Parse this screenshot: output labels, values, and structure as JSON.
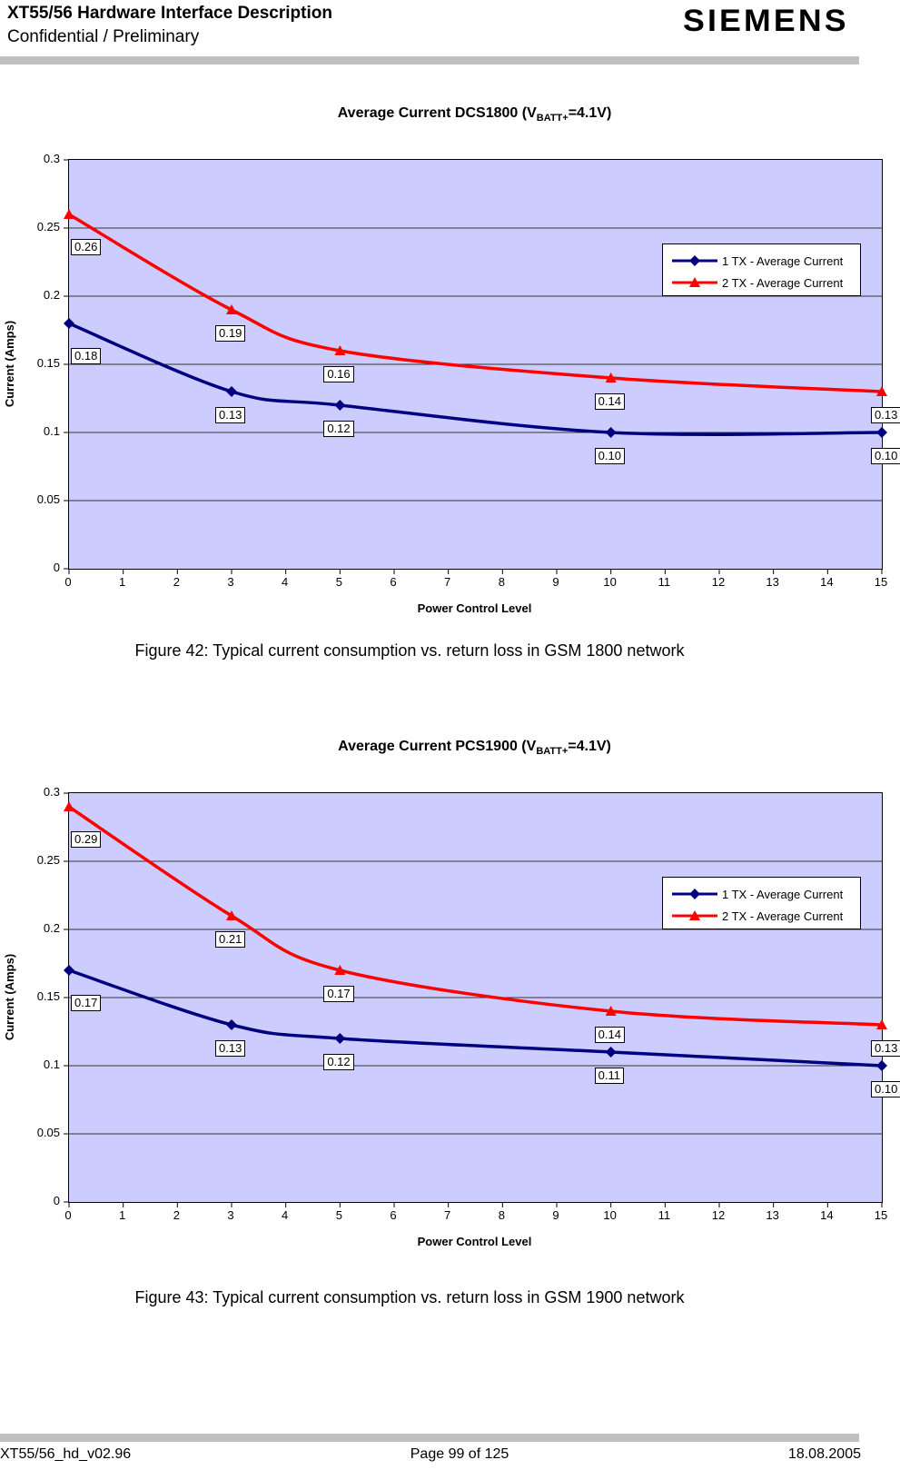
{
  "header": {
    "title": "XT55/56 Hardware Interface Description",
    "subtitle": "Confidential / Preliminary",
    "logo": "SIEMENS"
  },
  "captions": [
    "Figure 42: Typical current consumption vs. return loss in GSM 1800 network",
    "Figure 43: Typical current consumption vs. return loss in GSM 1900 network"
  ],
  "footer": {
    "left": "XT55/56_hd_v02.96",
    "center": "Page 99 of 125",
    "right": "18.08.2005"
  },
  "chart_data": [
    {
      "type": "line",
      "title": "Average Current DCS1800 (VBATT+=4.1V)",
      "title_prefix": "Average Current DCS1800 (V",
      "title_sub": "BATT+",
      "title_suffix": "=4.1V)",
      "xlabel": "Power Control Level",
      "ylabel": "Current (Amps)",
      "xlim": [
        0,
        15
      ],
      "ylim": [
        0,
        0.3
      ],
      "xticks": [
        0,
        1,
        2,
        3,
        4,
        5,
        6,
        7,
        8,
        9,
        10,
        11,
        12,
        13,
        14,
        15
      ],
      "yticks": [
        0.3,
        0.25,
        0.2,
        0.15,
        0.1,
        0.05,
        0
      ],
      "ytick_labels": [
        "0.3",
        "0.25",
        "0.2",
        "0.15",
        "0.1",
        "0.05",
        "0"
      ],
      "grid": true,
      "plot_bg": "#ccccff",
      "legend_position": "inside-right",
      "x": [
        0,
        3,
        5,
        10,
        15
      ],
      "series": [
        {
          "name": "1 TX - Average Current",
          "color": "#000080",
          "marker": "diamond",
          "values": [
            0.18,
            0.13,
            0.12,
            0.1,
            0.1
          ],
          "labels": [
            "0.18",
            "0.13",
            "0.12",
            "0.10",
            "0.10"
          ]
        },
        {
          "name": "2 TX - Average Current",
          "color": "#ff0000",
          "marker": "triangle",
          "values": [
            0.26,
            0.19,
            0.16,
            0.14,
            0.13
          ],
          "labels": [
            "0.26",
            "0.19",
            "0.16",
            "0.14",
            "0.13"
          ]
        }
      ]
    },
    {
      "type": "line",
      "title": "Average Current PCS1900 (VBATT+=4.1V)",
      "title_prefix": "Average Current PCS1900 (V",
      "title_sub": "BATT+",
      "title_suffix": "=4.1V)",
      "xlabel": "Power Control Level",
      "ylabel": "Current (Amps)",
      "xlim": [
        0,
        15
      ],
      "ylim": [
        0,
        0.3
      ],
      "xticks": [
        0,
        1,
        2,
        3,
        4,
        5,
        6,
        7,
        8,
        9,
        10,
        11,
        12,
        13,
        14,
        15
      ],
      "yticks": [
        0.3,
        0.25,
        0.2,
        0.15,
        0.1,
        0.05,
        0
      ],
      "ytick_labels": [
        "0.3",
        "0.25",
        "0.2",
        "0.15",
        "0.1",
        "0.05",
        "0"
      ],
      "grid": true,
      "plot_bg": "#ccccff",
      "legend_position": "inside-right",
      "x": [
        0,
        3,
        5,
        10,
        15
      ],
      "series": [
        {
          "name": "1 TX - Average Current",
          "color": "#000080",
          "marker": "diamond",
          "values": [
            0.17,
            0.13,
            0.12,
            0.11,
            0.1
          ],
          "labels": [
            "0.17",
            "0.13",
            "0.12",
            "0.11",
            "0.10"
          ]
        },
        {
          "name": "2 TX - Average Current",
          "color": "#ff0000",
          "marker": "triangle",
          "values": [
            0.29,
            0.21,
            0.17,
            0.14,
            0.13
          ],
          "labels": [
            "0.29",
            "0.21",
            "0.17",
            "0.14",
            "0.13"
          ]
        }
      ]
    }
  ]
}
